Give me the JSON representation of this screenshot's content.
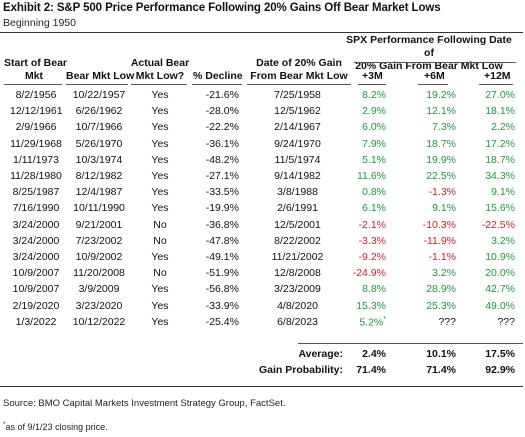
{
  "title": "Exhibit 2: S&P 500 Price Performance Following 20% Gains Off Bear Market Lows",
  "subtitle": "Beginning 1950",
  "spx_header": [
    "SPX Performance Following Date of",
    "20% Gain From Bear Mkt Low"
  ],
  "columns": {
    "start": [
      "Start of Bear",
      "Mkt"
    ],
    "low": [
      "Bear Mkt Low"
    ],
    "actual": [
      "Actual Bear",
      "Mkt Low?"
    ],
    "decline": [
      "% Decline"
    ],
    "gain_date": [
      "Date of 20% Gain",
      "From Bear Mkt Low"
    ],
    "m3": "+3M",
    "m6": "+6M",
    "m12": "+12M"
  },
  "rows": [
    {
      "start": "8/2/1956",
      "low": "10/22/1957",
      "actual": "Yes",
      "decline": "-21.6%",
      "gain_date": "7/25/1958",
      "m3": "8.2%",
      "m6": "19.2%",
      "m12": "27.0%"
    },
    {
      "start": "12/12/1961",
      "low": "6/26/1962",
      "actual": "Yes",
      "decline": "-28.0%",
      "gain_date": "12/5/1962",
      "m3": "2.9%",
      "m6": "12.1%",
      "m12": "18.1%"
    },
    {
      "start": "2/9/1966",
      "low": "10/7/1966",
      "actual": "Yes",
      "decline": "-22.2%",
      "gain_date": "2/14/1967",
      "m3": "6.0%",
      "m6": "7.3%",
      "m12": "2.2%"
    },
    {
      "start": "11/29/1968",
      "low": "5/26/1970",
      "actual": "Yes",
      "decline": "-36.1%",
      "gain_date": "9/24/1970",
      "m3": "7.9%",
      "m6": "18.7%",
      "m12": "17.2%"
    },
    {
      "start": "1/11/1973",
      "low": "10/3/1974",
      "actual": "Yes",
      "decline": "-48.2%",
      "gain_date": "11/5/1974",
      "m3": "5.1%",
      "m6": "19.9%",
      "m12": "18.7%"
    },
    {
      "start": "11/28/1980",
      "low": "8/12/1982",
      "actual": "Yes",
      "decline": "-27.1%",
      "gain_date": "9/14/1982",
      "m3": "11.6%",
      "m6": "22.5%",
      "m12": "34.3%"
    },
    {
      "start": "8/25/1987",
      "low": "12/4/1987",
      "actual": "Yes",
      "decline": "-33.5%",
      "gain_date": "3/8/1988",
      "m3": "0.8%",
      "m6": "-1.3%",
      "m12": "9.1%"
    },
    {
      "start": "7/16/1990",
      "low": "10/11/1990",
      "actual": "Yes",
      "decline": "-19.9%",
      "gain_date": "2/6/1991",
      "m3": "6.1%",
      "m6": "9.1%",
      "m12": "15.6%"
    },
    {
      "start": "3/24/2000",
      "low": "9/21/2001",
      "actual": "No",
      "decline": "-36.8%",
      "gain_date": "12/5/2001",
      "m3": "-2.1%",
      "m6": "-10.3%",
      "m12": "-22.5%"
    },
    {
      "start": "3/24/2000",
      "low": "7/23/2002",
      "actual": "No",
      "decline": "-47.8%",
      "gain_date": "8/22/2002",
      "m3": "-3.3%",
      "m6": "-11.9%",
      "m12": "3.2%"
    },
    {
      "start": "3/24/2000",
      "low": "10/9/2002",
      "actual": "Yes",
      "decline": "-49.1%",
      "gain_date": "11/21/2002",
      "m3": "-9.2%",
      "m6": "-1.1%",
      "m12": "10.9%"
    },
    {
      "start": "10/9/2007",
      "low": "11/20/2008",
      "actual": "No",
      "decline": "-51.9%",
      "gain_date": "12/8/2008",
      "m3": "-24.9%",
      "m6": "3.2%",
      "m12": "20.0%"
    },
    {
      "start": "10/9/2007",
      "low": "3/9/2009",
      "actual": "Yes",
      "decline": "-56.8%",
      "gain_date": "3/23/2009",
      "m3": "8.8%",
      "m6": "28.9%",
      "m12": "42.7%"
    },
    {
      "start": "2/19/2020",
      "low": "3/23/2020",
      "actual": "Yes",
      "decline": "-33.9%",
      "gain_date": "4/8/2020",
      "m3": "15.3%",
      "m6": "25.3%",
      "m12": "49.0%"
    },
    {
      "start": "1/3/2022",
      "low": "10/12/2022",
      "actual": "Yes",
      "decline": "-25.4%",
      "gain_date": "6/8/2023",
      "m3": "5.2%",
      "m3_note": "*",
      "m6": "???",
      "m12": "???"
    }
  ],
  "summary": {
    "average_label": "Average:",
    "average": {
      "m3": "2.4%",
      "m6": "10.1%",
      "m12": "17.5%"
    },
    "gain_label": "Gain Probability:",
    "gain": {
      "m3": "71.4%",
      "m6": "71.4%",
      "m12": "92.9%"
    }
  },
  "source": "Source: BMO Capital Markets Investment Strategy Group, FactSet.",
  "note_mark": "*",
  "note": "as of 9/1/23 closing price.",
  "colors": {
    "positive": "#1a9c3e",
    "negative": "#d0202a"
  }
}
